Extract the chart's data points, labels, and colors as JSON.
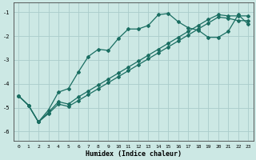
{
  "xlabel": "Humidex (Indice chaleur)",
  "bg_color": "#cce8e4",
  "grid_color": "#aaccca",
  "line_color": "#1a6e62",
  "xlim": [
    -0.5,
    23.5
  ],
  "ylim": [
    -6.4,
    -0.6
  ],
  "yticks": [
    -6,
    -5,
    -4,
    -3,
    -2,
    -1
  ],
  "xticks": [
    0,
    1,
    2,
    3,
    4,
    5,
    6,
    7,
    8,
    9,
    10,
    11,
    12,
    13,
    14,
    15,
    16,
    17,
    18,
    19,
    20,
    21,
    22,
    23
  ],
  "series1_x": [
    0,
    1,
    2,
    3,
    4,
    5,
    6,
    7,
    8,
    9,
    10,
    11,
    12,
    13,
    14,
    15,
    16,
    17,
    18,
    19,
    20,
    21,
    22,
    23
  ],
  "series1_y": [
    -4.5,
    -4.9,
    -5.6,
    -5.1,
    -4.35,
    -4.2,
    -3.5,
    -2.85,
    -2.55,
    -2.6,
    -2.1,
    -1.7,
    -1.7,
    -1.55,
    -1.1,
    -1.05,
    -1.4,
    -1.65,
    -1.75,
    -2.05,
    -2.05,
    -1.8,
    -1.1,
    -1.5
  ],
  "series2_x": [
    0,
    1,
    2,
    3,
    4,
    5,
    6,
    7,
    8,
    9,
    10,
    11,
    12,
    13,
    14,
    15,
    16,
    17,
    18,
    19,
    20,
    21,
    22,
    23
  ],
  "series2_y": [
    -4.5,
    -4.9,
    -5.6,
    -5.2,
    -4.75,
    -4.85,
    -4.55,
    -4.3,
    -4.05,
    -3.8,
    -3.55,
    -3.3,
    -3.05,
    -2.8,
    -2.55,
    -2.3,
    -2.05,
    -1.8,
    -1.55,
    -1.3,
    -1.1,
    -1.15,
    -1.15,
    -1.15
  ],
  "series3_x": [
    0,
    1,
    2,
    3,
    4,
    5,
    6,
    7,
    8,
    9,
    10,
    11,
    12,
    13,
    14,
    15,
    16,
    17,
    18,
    19,
    20,
    21,
    22,
    23
  ],
  "series3_y": [
    -4.5,
    -4.9,
    -5.6,
    -5.25,
    -4.85,
    -4.95,
    -4.7,
    -4.45,
    -4.2,
    -3.95,
    -3.7,
    -3.45,
    -3.2,
    -2.95,
    -2.7,
    -2.45,
    -2.2,
    -1.95,
    -1.7,
    -1.45,
    -1.2,
    -1.25,
    -1.35,
    -1.35
  ]
}
